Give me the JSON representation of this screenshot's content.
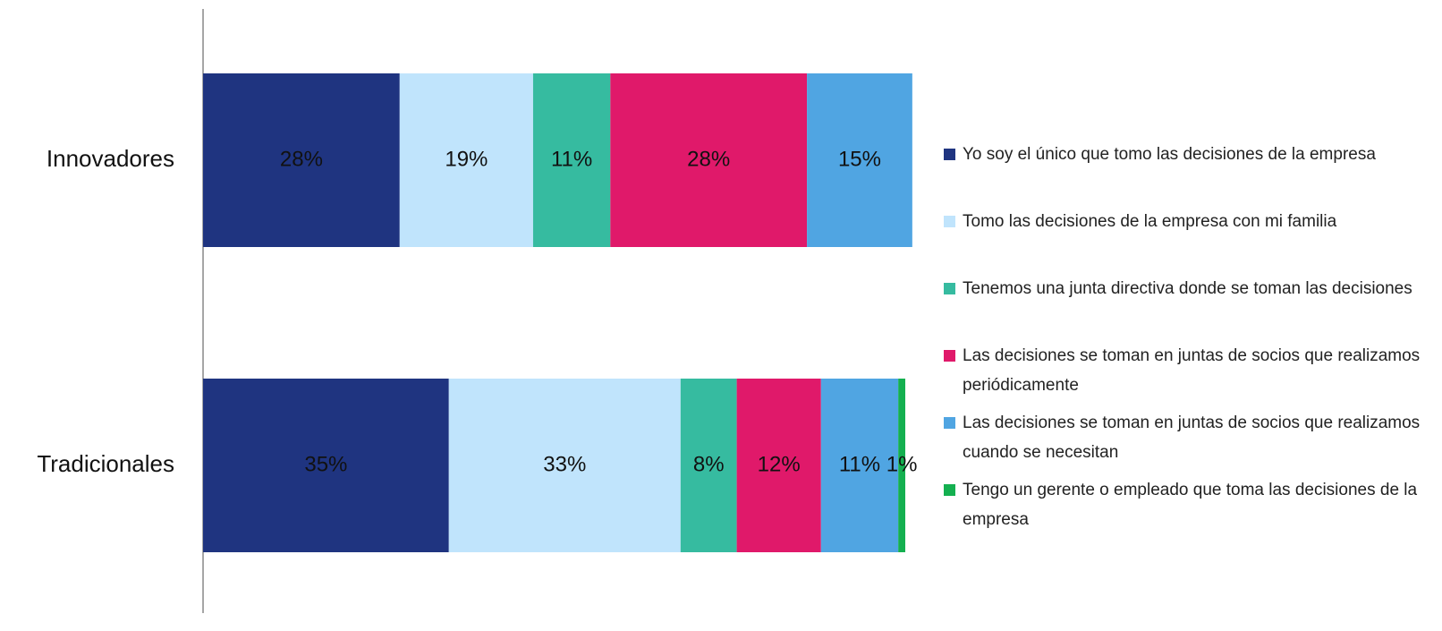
{
  "chart_data": {
    "type": "bar",
    "orientation": "horizontal",
    "stacked": true,
    "categories": [
      "Innovadores",
      "Tradicionales"
    ],
    "xlim": [
      0,
      100
    ],
    "series": [
      {
        "name": "Yo soy el único que tomo las decisiones de la empresa",
        "color": "#1f3480",
        "values": [
          28,
          35
        ],
        "value_labels": [
          "28%",
          "35%"
        ]
      },
      {
        "name": "Tomo las decisiones de la empresa con mi familia",
        "color": "#c0e4fc",
        "values": [
          19,
          33
        ],
        "value_labels": [
          "19%",
          "33%"
        ]
      },
      {
        "name": "Tenemos una junta directiva donde se toman las decisiones",
        "color": "#36bba0",
        "values": [
          11,
          8
        ],
        "value_labels": [
          "11%",
          "8%"
        ]
      },
      {
        "name": "Las decisiones se toman en juntas de socios que realizamos periódicamente",
        "color": "#e0196a",
        "values": [
          28,
          12
        ],
        "value_labels": [
          "28%",
          "12%"
        ]
      },
      {
        "name": "Las decisiones se toman en juntas de socios que realizamos cuando se necesitan",
        "color": "#50a5e2",
        "values": [
          15,
          11
        ],
        "value_labels": [
          "15%",
          "11%"
        ]
      },
      {
        "name": "Tengo un gerente o empleado que toma las decisiones de la empresa",
        "color": "#14b050",
        "values": [
          null,
          1
        ],
        "value_labels": [
          null,
          "1%"
        ]
      }
    ],
    "legend": "right"
  }
}
